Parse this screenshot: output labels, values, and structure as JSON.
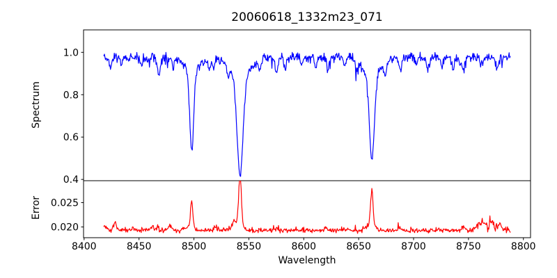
{
  "title": "20060618_1332m23_071",
  "colors": {
    "spectrum_line": "#0000ff",
    "error_line": "#ff0000",
    "text": "#000000",
    "spine": "#000000",
    "background": "#ffffff"
  },
  "chart_data": {
    "type": "line",
    "title": "20060618_1332m23_071",
    "xlabel": "Wavelength",
    "grid": false,
    "legend": null,
    "xlim": [
      8399.5,
      8806.5
    ],
    "x_data_range": [
      8418,
      8788
    ],
    "x_step": 0.5,
    "x_ticks": [
      {
        "v": 8400,
        "label": "8400"
      },
      {
        "v": 8450,
        "label": "8450"
      },
      {
        "v": 8500,
        "label": "8500"
      },
      {
        "v": 8550,
        "label": "8550"
      },
      {
        "v": 8600,
        "label": "8600"
      },
      {
        "v": 8650,
        "label": "8650"
      },
      {
        "v": 8700,
        "label": "8700"
      },
      {
        "v": 8750,
        "label": "8750"
      },
      {
        "v": 8800,
        "label": "8800"
      }
    ],
    "panels": [
      {
        "name": "spectrum",
        "ylabel": "Spectrum",
        "ylim": [
          0.394,
          1.106
        ],
        "y_ticks": [
          {
            "v": 0.4,
            "label": "0.4"
          },
          {
            "v": 0.6,
            "label": "0.6"
          },
          {
            "v": 0.8,
            "label": "0.8"
          },
          {
            "v": 1.0,
            "label": "1.0"
          }
        ],
        "color": "#0000ff",
        "continuum_level": 0.976,
        "noise_sigma": 0.011,
        "downward_spike_prob": 0.05,
        "downward_spike_max": 0.05,
        "absorption_lines": [
          {
            "center": 8498.0,
            "min_value": 0.535,
            "core_depth": 0.38,
            "core_sigma": 1.8,
            "wing_depth": 0.062,
            "wing_sigma": 7.0
          },
          {
            "center": 8542.0,
            "min_value": 0.415,
            "core_depth": 0.46,
            "core_sigma": 2.6,
            "wing_depth": 0.1,
            "wing_sigma": 9.0
          },
          {
            "center": 8662.0,
            "min_value": 0.49,
            "core_depth": 0.4,
            "core_sigma": 2.2,
            "wing_depth": 0.086,
            "wing_sigma": 8.0
          }
        ],
        "minor_lines": [
          [
            8424,
            0.045,
            1.2
          ],
          [
            8434,
            0.04,
            1.0
          ],
          [
            8452,
            0.035,
            1.0
          ],
          [
            8468,
            0.085,
            1.3
          ],
          [
            8481,
            0.05,
            1.0
          ],
          [
            8514,
            0.055,
            1.2
          ],
          [
            8518,
            0.045,
            1.0
          ],
          [
            8531,
            0.04,
            1.0
          ],
          [
            8560,
            0.05,
            1.2
          ],
          [
            8575,
            0.075,
            1.3
          ],
          [
            8583,
            0.055,
            1.0
          ],
          [
            8598,
            0.045,
            1.0
          ],
          [
            8611,
            0.05,
            1.2
          ],
          [
            8622,
            0.055,
            1.2
          ],
          [
            8637,
            0.04,
            1.0
          ],
          [
            8648,
            0.045,
            1.0
          ],
          [
            8674,
            0.05,
            1.2
          ],
          [
            8688,
            0.065,
            1.3
          ],
          [
            8702,
            0.04,
            1.0
          ],
          [
            8713,
            0.05,
            1.2
          ],
          [
            8726,
            0.04,
            1.0
          ],
          [
            8736,
            0.055,
            1.2
          ],
          [
            8745,
            0.065,
            1.2
          ],
          [
            8762,
            0.04,
            1.0
          ],
          [
            8776,
            0.05,
            1.2
          ]
        ]
      },
      {
        "name": "error",
        "ylabel": "Error",
        "ylim": [
          0.0178,
          0.0295
        ],
        "y_ticks": [
          {
            "v": 0.02,
            "label": "0.020"
          },
          {
            "v": 0.025,
            "label": "0.025"
          }
        ],
        "color": "#ff0000",
        "baseline_level": 0.0193,
        "noise_sigma": 0.00023,
        "extra_noise_above_x": 8750,
        "extra_noise_sigma": 0.00012,
        "upward_spike_prob": 0.06,
        "upward_spike_max": 0.0009,
        "peaks": [
          [
            8498,
            0.0053,
            1.0
          ],
          [
            8497,
            0.0008,
            3.0
          ],
          [
            8542,
            0.01,
            1.2
          ],
          [
            8540,
            0.0015,
            4.0
          ],
          [
            8662,
            0.0074,
            1.1
          ],
          [
            8661,
            0.0012,
            3.5
          ],
          [
            8419,
            0.0005,
            2.0
          ],
          [
            8428,
            0.0016,
            1.4
          ],
          [
            8445,
            0.0006,
            1.5
          ],
          [
            8462,
            0.0008,
            1.5
          ],
          [
            8478,
            0.0011,
            1.2
          ],
          [
            8492,
            0.0005,
            1.0
          ],
          [
            8520,
            0.0007,
            1.5
          ],
          [
            8536,
            0.0008,
            1.5
          ],
          [
            8575,
            0.0005,
            1.5
          ],
          [
            8620,
            0.0004,
            1.5
          ],
          [
            8688,
            0.0006,
            1.5
          ],
          [
            8745,
            0.0007,
            1.5
          ],
          [
            8758,
            0.001,
            2.0
          ],
          [
            8763,
            0.0018,
            2.2
          ],
          [
            8771,
            0.0022,
            1.8
          ],
          [
            8778,
            0.0013,
            2.0
          ]
        ]
      }
    ]
  }
}
